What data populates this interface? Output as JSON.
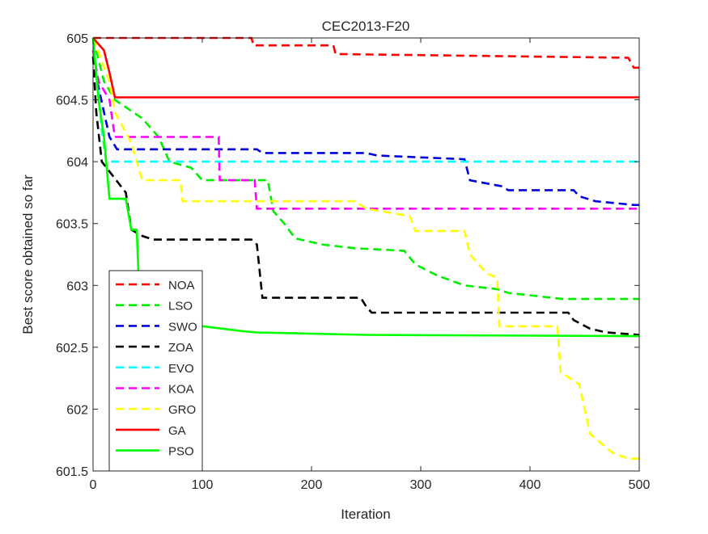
{
  "chart_data": {
    "type": "line",
    "title": "CEC2013-F20",
    "xlabel": "Iteration",
    "ylabel": "Best score obtained so far",
    "xlim": [
      0,
      500
    ],
    "ylim": [
      601.5,
      605
    ],
    "xticks": [
      0,
      100,
      200,
      300,
      400,
      500
    ],
    "yticks": [
      601.5,
      602,
      602.5,
      603,
      603.5,
      604,
      604.5,
      605
    ],
    "ytick_labels": [
      "601.5",
      "602",
      "602.5",
      "603",
      "603.5",
      "604",
      "604.5",
      "605"
    ],
    "grid": false,
    "legend_position": "bottom-left",
    "series": [
      {
        "name": "NOA",
        "color": "#ff0000",
        "dash": true,
        "points": [
          [
            0,
            605
          ],
          [
            145,
            605
          ],
          [
            147,
            604.94
          ],
          [
            220,
            604.94
          ],
          [
            222,
            604.87
          ],
          [
            490,
            604.84
          ],
          [
            495,
            604.76
          ],
          [
            500,
            604.76
          ]
        ]
      },
      {
        "name": "LSO",
        "color": "#00ee00",
        "dash": true,
        "points": [
          [
            0,
            605
          ],
          [
            10,
            604.65
          ],
          [
            20,
            604.5
          ],
          [
            45,
            604.35
          ],
          [
            60,
            604.2
          ],
          [
            70,
            604.0
          ],
          [
            90,
            603.95
          ],
          [
            100,
            603.85
          ],
          [
            160,
            603.85
          ],
          [
            165,
            603.6
          ],
          [
            175,
            603.5
          ],
          [
            185,
            603.38
          ],
          [
            210,
            603.33
          ],
          [
            240,
            603.3
          ],
          [
            285,
            603.28
          ],
          [
            295,
            603.17
          ],
          [
            315,
            603.08
          ],
          [
            340,
            603.0
          ],
          [
            370,
            602.97
          ],
          [
            380,
            602.94
          ],
          [
            400,
            602.92
          ],
          [
            430,
            602.89
          ],
          [
            500,
            602.89
          ]
        ]
      },
      {
        "name": "SWO",
        "color": "#0000dd",
        "dash": true,
        "points": [
          [
            0,
            604.85
          ],
          [
            5,
            604.6
          ],
          [
            15,
            604.2
          ],
          [
            22,
            604.1
          ],
          [
            150,
            604.1
          ],
          [
            155,
            604.07
          ],
          [
            250,
            604.07
          ],
          [
            260,
            604.05
          ],
          [
            340,
            604.02
          ],
          [
            345,
            603.85
          ],
          [
            375,
            603.8
          ],
          [
            380,
            603.77
          ],
          [
            440,
            603.77
          ],
          [
            445,
            603.72
          ],
          [
            460,
            603.68
          ],
          [
            495,
            603.65
          ],
          [
            500,
            603.65
          ]
        ]
      },
      {
        "name": "ZOA",
        "color": "#000000",
        "dash": true,
        "points": [
          [
            0,
            604.85
          ],
          [
            3,
            604.4
          ],
          [
            8,
            604.0
          ],
          [
            30,
            603.75
          ],
          [
            35,
            603.45
          ],
          [
            45,
            603.4
          ],
          [
            55,
            603.37
          ],
          [
            145,
            603.37
          ],
          [
            150,
            603.33
          ],
          [
            155,
            602.9
          ],
          [
            245,
            602.9
          ],
          [
            250,
            602.83
          ],
          [
            255,
            602.78
          ],
          [
            435,
            602.78
          ],
          [
            440,
            602.72
          ],
          [
            455,
            602.65
          ],
          [
            470,
            602.62
          ],
          [
            500,
            602.6
          ]
        ]
      },
      {
        "name": "EVO",
        "color": "#00ffff",
        "dash": true,
        "points": [
          [
            0,
            605
          ],
          [
            8,
            604.25
          ],
          [
            12,
            604.0
          ],
          [
            500,
            604.0
          ]
        ]
      },
      {
        "name": "KOA",
        "color": "#ff00ff",
        "dash": true,
        "points": [
          [
            0,
            604.9
          ],
          [
            5,
            604.65
          ],
          [
            15,
            604.5
          ],
          [
            20,
            604.2
          ],
          [
            115,
            604.2
          ],
          [
            116,
            603.85
          ],
          [
            148,
            603.85
          ],
          [
            150,
            603.62
          ],
          [
            500,
            603.62
          ]
        ]
      },
      {
        "name": "GRO",
        "color": "#ffff00",
        "dash": true,
        "points": [
          [
            0,
            605
          ],
          [
            15,
            604.65
          ],
          [
            20,
            604.4
          ],
          [
            35,
            604.15
          ],
          [
            45,
            603.85
          ],
          [
            80,
            603.85
          ],
          [
            82,
            603.68
          ],
          [
            240,
            603.68
          ],
          [
            250,
            603.62
          ],
          [
            290,
            603.56
          ],
          [
            295,
            603.44
          ],
          [
            340,
            603.44
          ],
          [
            345,
            603.25
          ],
          [
            360,
            603.1
          ],
          [
            370,
            603.06
          ],
          [
            372,
            602.67
          ],
          [
            425,
            602.67
          ],
          [
            428,
            602.3
          ],
          [
            445,
            602.2
          ],
          [
            455,
            601.8
          ],
          [
            475,
            601.65
          ],
          [
            490,
            601.6
          ],
          [
            500,
            601.6
          ]
        ]
      },
      {
        "name": "GA",
        "color": "#ff0000",
        "dash": false,
        "points": [
          [
            0,
            605
          ],
          [
            10,
            604.9
          ],
          [
            15,
            604.72
          ],
          [
            20,
            604.52
          ],
          [
            500,
            604.52
          ]
        ]
      },
      {
        "name": "PSO",
        "color": "#00ff00",
        "dash": false,
        "points": [
          [
            0,
            605
          ],
          [
            5,
            604.5
          ],
          [
            10,
            604.2
          ],
          [
            15,
            603.7
          ],
          [
            30,
            603.7
          ],
          [
            35,
            603.45
          ],
          [
            40,
            603.45
          ],
          [
            42,
            603.0
          ],
          [
            50,
            602.8
          ],
          [
            70,
            602.72
          ],
          [
            100,
            602.67
          ],
          [
            137,
            602.63
          ],
          [
            150,
            602.62
          ],
          [
            250,
            602.6
          ],
          [
            500,
            602.59
          ]
        ]
      }
    ]
  }
}
